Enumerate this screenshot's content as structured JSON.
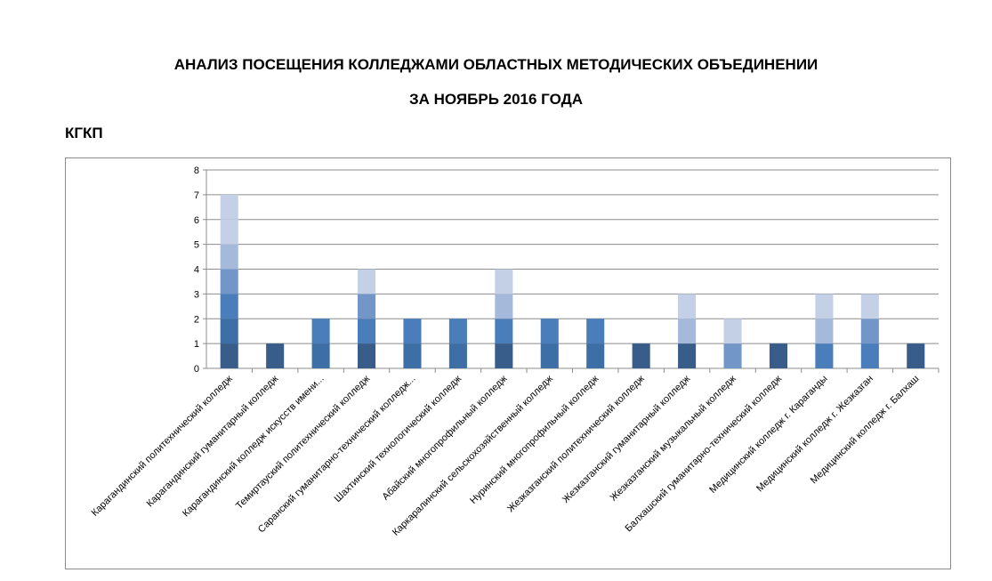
{
  "header": {
    "title_line1": "АНАЛИЗ ПОСЕЩЕНИЯ  КОЛЛЕДЖАМИ ОБЛАСТНЫХ МЕТОДИЧЕСКИХ ОБЪЕДИНЕНИИ",
    "title_line2": "ЗА НОЯБРЬ 2016 ГОДА",
    "section": "КГКП"
  },
  "chart_data": {
    "type": "bar",
    "stacked": true,
    "grid": true,
    "ylim": [
      0,
      8
    ],
    "yticks": [
      0,
      1,
      2,
      3,
      4,
      5,
      6,
      7,
      8
    ],
    "categories": [
      "Карагандинский политехнический  колледж",
      "Карагандинский гуманитарный колледж",
      "Карагандинский колледж искусств имени...",
      "Темиртауский политехнический  колледж",
      "Саранский гуманитарно-технический колледж...",
      "Шахтинский технологический  колледж",
      "Абайский  многопрофильный колледж",
      "Каркаралинский сельскохозяйственный колледж",
      "Нуринский  многопрофильный колледж",
      "Жезказганский политехнический  колледж",
      "Жезказганский гуманитарный колледж",
      "Жезказганский музыкальный колледж",
      "Балхашский гуманитарно-технический  колледж",
      "Медицинский  колледж  г. Караганды",
      "Медицинский  колледж  г. Жезказган",
      "Медицинский  колледж  г. Балхаш"
    ],
    "values": [
      7,
      1,
      2,
      4,
      2,
      2,
      4,
      2,
      2,
      1,
      3,
      2,
      1,
      3,
      3,
      1
    ],
    "segment_colors": [
      "#385d8a",
      "#3e6ea6",
      "#4a7ebb",
      "#7396c9",
      "#a5b9da",
      "#c3d0e6",
      "#c3d0e6"
    ],
    "bar_colors": [
      [
        "#385d8a",
        "#3e6ea6",
        "#4a7ebb",
        "#7396c9",
        "#a5b9da",
        "#c3d0e6",
        "#c3d0e6"
      ],
      [
        "#385d8a"
      ],
      [
        "#3e6ea6",
        "#4a7ebb"
      ],
      [
        "#385d8a",
        "#4a7ebb",
        "#7396c9",
        "#c3d0e6"
      ],
      [
        "#3e6ea6",
        "#4a7ebb"
      ],
      [
        "#3e6ea6",
        "#4a7ebb"
      ],
      [
        "#385d8a",
        "#4a7ebb",
        "#a5b9da",
        "#c3d0e6"
      ],
      [
        "#3e6ea6",
        "#4a7ebb"
      ],
      [
        "#3e6ea6",
        "#4a7ebb"
      ],
      [
        "#385d8a"
      ],
      [
        "#385d8a",
        "#a5b9da",
        "#c3d0e6"
      ],
      [
        "#7396c9",
        "#c3d0e6"
      ],
      [
        "#385d8a"
      ],
      [
        "#4a7ebb",
        "#a5b9da",
        "#c3d0e6"
      ],
      [
        "#4a7ebb",
        "#7396c9",
        "#c3d0e6"
      ],
      [
        "#385d8a"
      ]
    ],
    "grid_color": "#8c8c8c",
    "axis_color": "#8c8c8c"
  }
}
